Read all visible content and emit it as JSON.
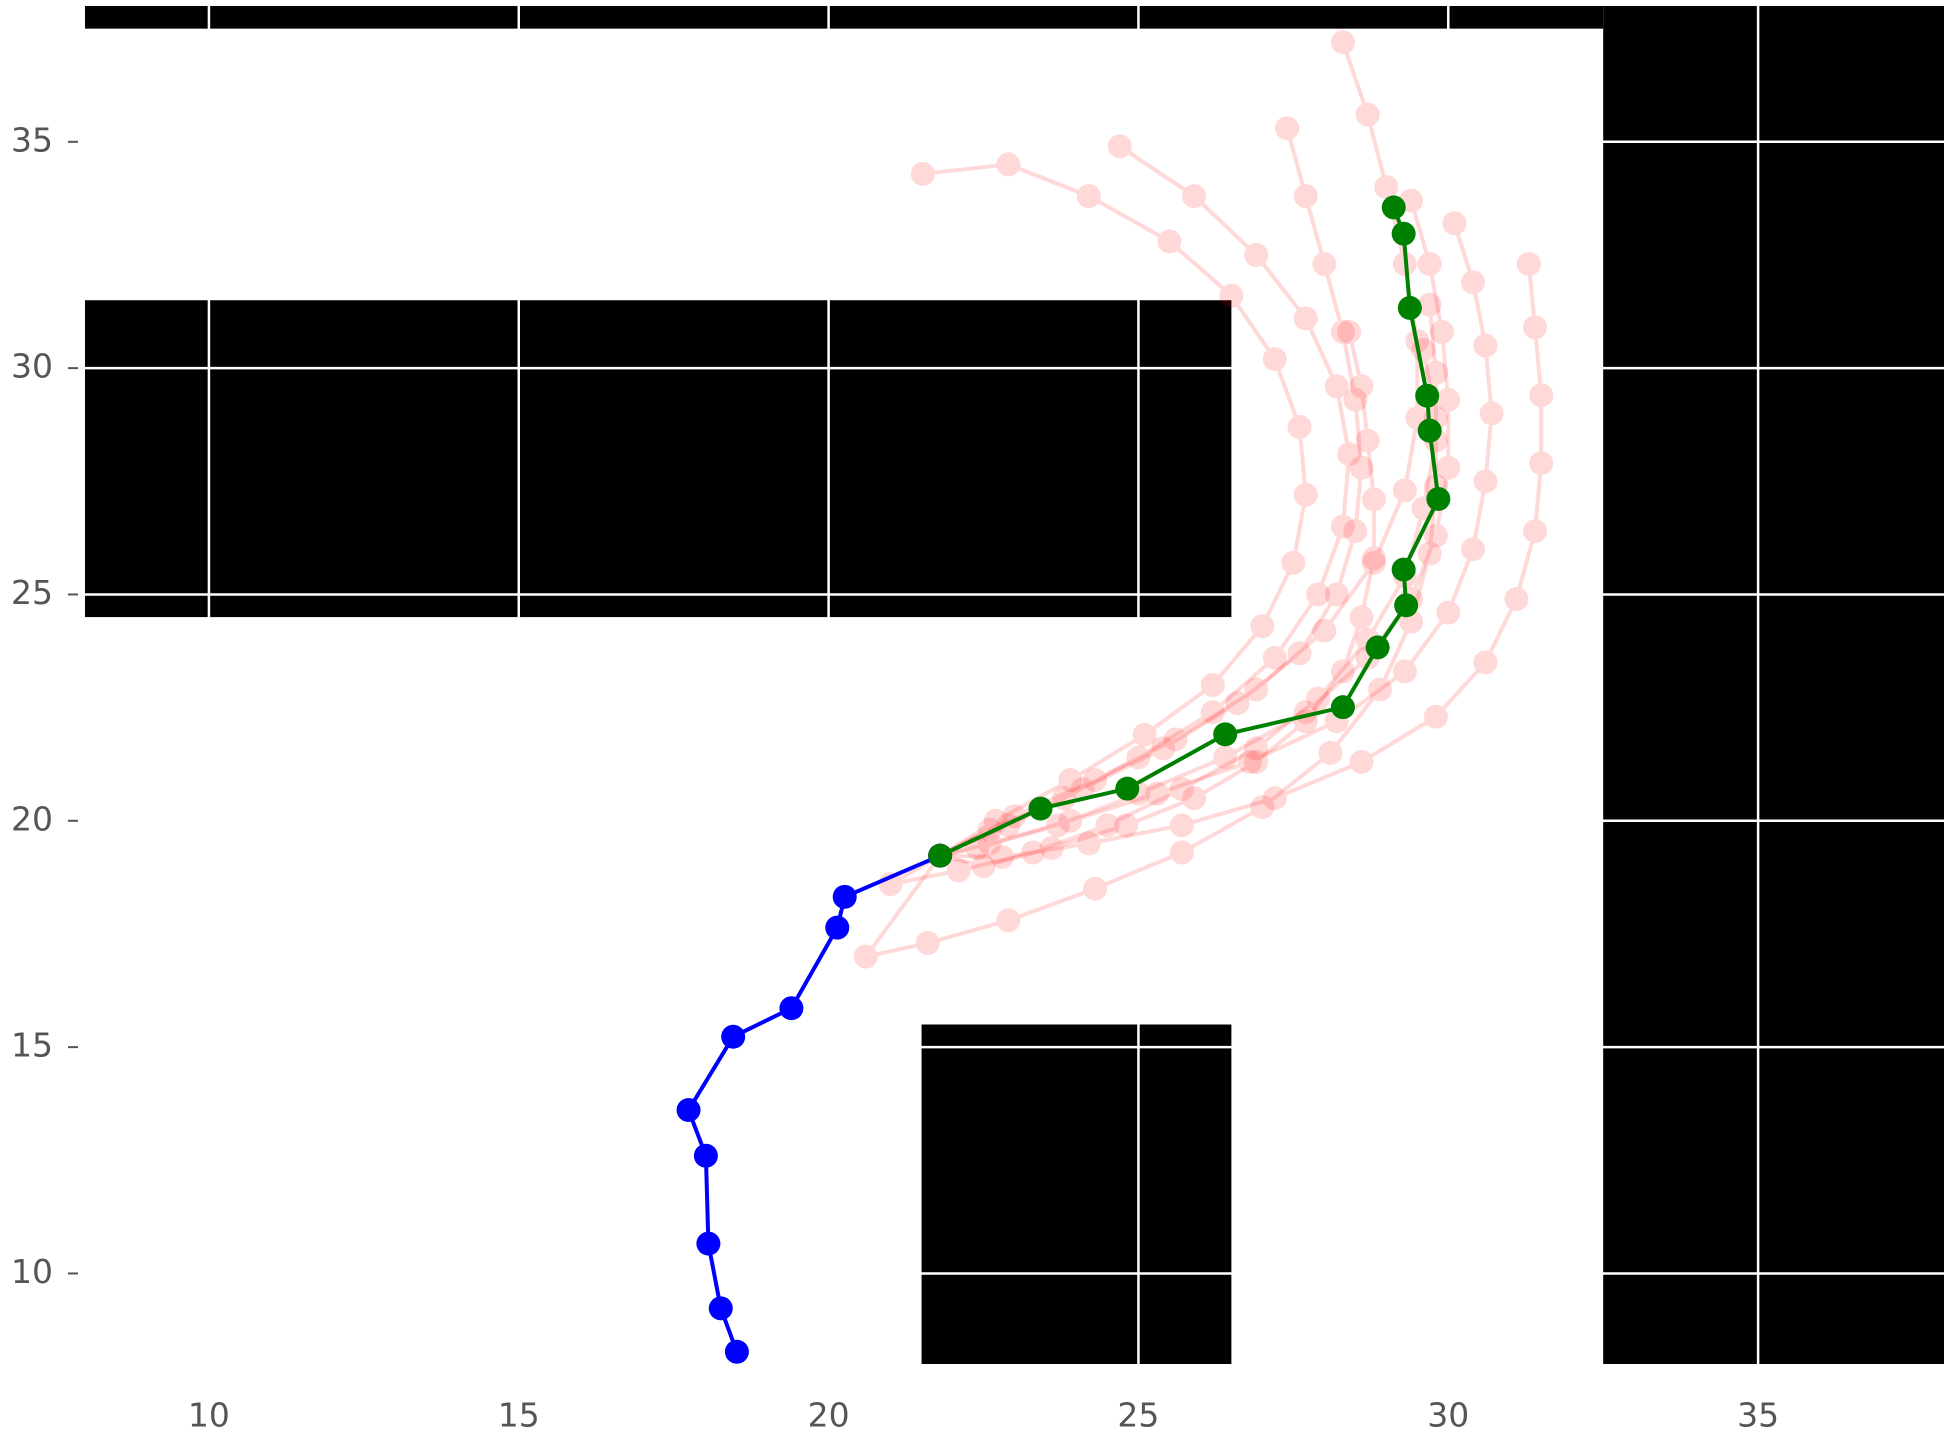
{
  "chart_data": {
    "type": "line",
    "xlim": [
      8,
      38
    ],
    "ylim": [
      8,
      38
    ],
    "xticks": [
      10,
      15,
      20,
      25,
      30,
      35
    ],
    "yticks": [
      10,
      15,
      20,
      25,
      30,
      35
    ],
    "grid": true,
    "grid_color": "#ffffff",
    "obstacle_color": "#000000",
    "obstacles": [
      {
        "x": [
          8,
          32.5
        ],
        "y": [
          37.5,
          38
        ]
      },
      {
        "x": [
          32.5,
          38
        ],
        "y": [
          8,
          38
        ]
      },
      {
        "x": [
          8,
          26.5
        ],
        "y": [
          24.5,
          31.5
        ]
      },
      {
        "x": [
          21.5,
          26.5
        ],
        "y": [
          8,
          15.5
        ]
      }
    ],
    "series": [
      {
        "color": "#ff0000",
        "alpha": 0.15,
        "x": [
          21.8,
          22.6,
          23.9,
          25.3,
          26.8,
          28.2,
          29.3,
          30.0,
          30.4,
          30.6,
          30.7,
          30.6,
          30.4,
          30.1
        ],
        "values": [
          19.23,
          19.5,
          20.0,
          20.6,
          21.3,
          22.2,
          23.3,
          24.6,
          26.0,
          27.5,
          29.0,
          30.5,
          31.9,
          33.2
        ]
      },
      {
        "color": "#ff0000",
        "alpha": 0.15,
        "x": [
          21.8,
          22.9,
          24.1,
          25.4,
          26.6,
          27.6,
          28.2,
          28.5,
          28.6,
          28.5,
          28.3,
          28.0,
          27.7,
          27.4
        ],
        "values": [
          19.23,
          19.9,
          20.7,
          21.6,
          22.6,
          23.7,
          25.0,
          26.4,
          27.8,
          29.3,
          30.8,
          32.3,
          33.8,
          35.3
        ]
      },
      {
        "color": "#ff0000",
        "alpha": 0.15,
        "x": [
          21.8,
          22.7,
          23.9,
          25.1,
          26.2,
          27.0,
          27.5,
          27.7,
          27.6,
          27.2,
          26.5,
          25.5,
          24.2,
          22.9,
          21.52
        ],
        "values": [
          19.23,
          20.0,
          20.9,
          21.9,
          23.0,
          24.3,
          25.7,
          27.2,
          28.7,
          30.2,
          31.6,
          32.8,
          33.8,
          34.5,
          34.29
        ]
      },
      {
        "color": "#ff0000",
        "alpha": 0.15,
        "x": [
          21.8,
          22.5,
          23.6,
          24.8,
          25.9,
          26.9,
          27.7,
          28.3,
          28.6,
          28.8,
          28.8,
          28.7,
          28.6,
          28.4
        ],
        "values": [
          19.23,
          19.0,
          19.4,
          19.9,
          20.5,
          21.3,
          22.2,
          23.3,
          24.5,
          25.8,
          27.1,
          28.4,
          29.6,
          30.8
        ]
      },
      {
        "color": "#ff0000",
        "alpha": 0.15,
        "x": [
          21.8,
          23.0,
          24.3,
          25.6,
          26.9,
          28.0,
          28.8,
          29.3,
          29.5,
          29.5,
          29.3,
          29.0,
          28.7,
          28.3
        ],
        "values": [
          19.23,
          20.1,
          20.9,
          21.8,
          22.9,
          24.2,
          25.7,
          27.3,
          28.9,
          30.6,
          32.3,
          34.0,
          35.6,
          37.2
        ]
      },
      {
        "color": "#ff0000",
        "alpha": 0.15,
        "x": [
          21.8,
          22.8,
          24.2,
          25.7,
          27.2,
          28.6,
          29.8,
          30.6,
          31.1,
          31.4,
          31.5,
          31.5,
          31.4,
          31.3
        ],
        "values": [
          19.23,
          19.2,
          19.5,
          19.9,
          20.5,
          21.3,
          22.3,
          23.5,
          24.9,
          26.4,
          27.9,
          29.4,
          30.9,
          32.3
        ]
      },
      {
        "color": "#ff0000",
        "alpha": 0.15,
        "x": [
          21.8,
          21.0,
          22.1,
          23.3,
          24.5,
          25.7,
          26.9,
          27.9,
          28.7,
          29.3,
          29.6,
          29.8,
          29.8,
          29.7
        ],
        "values": [
          19.23,
          18.6,
          18.9,
          19.3,
          19.9,
          20.7,
          21.6,
          22.7,
          24.0,
          25.4,
          26.9,
          28.4,
          29.9,
          31.4
        ]
      },
      {
        "color": "#ff0000",
        "alpha": 0.15,
        "x": [
          21.8,
          20.6,
          21.6,
          22.9,
          24.3,
          25.7,
          27.0,
          28.1,
          28.9,
          29.4,
          29.7,
          29.8,
          29.8,
          29.6
        ],
        "values": [
          19.23,
          17.0,
          17.3,
          17.8,
          18.5,
          19.3,
          20.3,
          21.5,
          22.9,
          24.4,
          25.9,
          27.4,
          28.9,
          30.4
        ]
      },
      {
        "color": "#ff0000",
        "alpha": 0.15,
        "x": [
          21.8,
          22.6,
          23.8,
          25.0,
          26.2,
          27.2,
          27.9,
          28.3,
          28.4,
          28.2,
          27.7,
          26.9,
          25.9,
          24.7
        ],
        "values": [
          19.23,
          19.8,
          20.5,
          21.4,
          22.4,
          23.6,
          25.0,
          26.5,
          28.1,
          29.6,
          31.1,
          32.5,
          33.8,
          34.9
        ]
      },
      {
        "color": "#ff0000",
        "alpha": 0.15,
        "x": [
          21.8,
          22.4,
          23.7,
          25.0,
          26.4,
          27.7,
          28.7,
          29.4,
          29.8,
          30.0,
          30.0,
          29.9,
          29.7,
          29.4
        ],
        "values": [
          19.23,
          19.4,
          19.9,
          20.6,
          21.4,
          22.4,
          23.6,
          24.9,
          26.3,
          27.8,
          29.3,
          30.8,
          32.3,
          33.7
        ]
      },
      {
        "color": "#0000ff",
        "alpha": 1,
        "x": [
          18.52,
          18.26,
          18.06,
          18.02,
          17.74,
          18.46,
          19.4,
          20.14,
          20.26,
          21.8
        ],
        "values": [
          8.27,
          9.23,
          10.66,
          12.6,
          13.61,
          15.23,
          15.86,
          17.64,
          18.32,
          19.23
        ]
      },
      {
        "color": "#008000",
        "alpha": 1,
        "x": [
          21.8,
          23.42,
          24.82,
          26.4,
          28.3,
          28.86,
          29.32,
          29.28,
          29.84,
          29.7,
          29.66,
          29.38,
          29.28,
          29.12
        ],
        "values": [
          19.23,
          20.27,
          20.71,
          21.91,
          22.51,
          23.83,
          24.76,
          25.55,
          27.11,
          28.62,
          29.39,
          31.33,
          32.97,
          33.55
        ]
      }
    ]
  }
}
